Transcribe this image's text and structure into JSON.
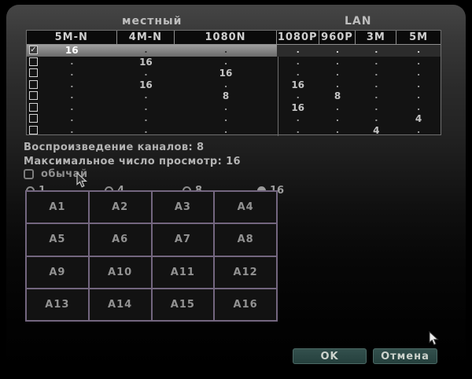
{
  "colors": {
    "grid_border": "#73667f",
    "button_bg": "#33504d",
    "selected_row": "#8a8a8a"
  },
  "dialog": {
    "section_headers": {
      "local": "местный",
      "lan": "LAN"
    },
    "table": {
      "columns": [
        "5M-N",
        "4M-N",
        "1080N",
        "1080P",
        "960P",
        "3M",
        "5M"
      ],
      "rows": [
        {
          "checked": true,
          "selected": true,
          "values": [
            "16",
            ".",
            ".",
            ".",
            ".",
            ".",
            "."
          ]
        },
        {
          "checked": false,
          "selected": false,
          "values": [
            ".",
            "16",
            ".",
            ".",
            ".",
            ".",
            "."
          ]
        },
        {
          "checked": false,
          "selected": false,
          "values": [
            ".",
            ".",
            "16",
            ".",
            ".",
            ".",
            "."
          ]
        },
        {
          "checked": false,
          "selected": false,
          "values": [
            ".",
            "16",
            ".",
            "16",
            ".",
            ".",
            "."
          ]
        },
        {
          "checked": false,
          "selected": false,
          "values": [
            ".",
            ".",
            "8",
            ".",
            "8",
            ".",
            "."
          ]
        },
        {
          "checked": false,
          "selected": false,
          "values": [
            ".",
            ".",
            ".",
            "16",
            ".",
            ".",
            "."
          ]
        },
        {
          "checked": false,
          "selected": false,
          "values": [
            ".",
            ".",
            ".",
            ".",
            ".",
            ".",
            "4"
          ]
        },
        {
          "checked": false,
          "selected": false,
          "values": [
            ".",
            ".",
            ".",
            ".",
            ".",
            "4",
            "."
          ]
        }
      ]
    },
    "info": {
      "playback": "Воспроизведение каналов: 8",
      "max_view": "Максимальное число просмотр: 16"
    },
    "custom_checkbox": {
      "label": "обычай",
      "checked": false
    },
    "radios": [
      {
        "label": "1",
        "selected": false
      },
      {
        "label": "4",
        "selected": false
      },
      {
        "label": "8",
        "selected": false
      },
      {
        "label": "16",
        "selected": true
      }
    ],
    "channels": [
      "A1",
      "A2",
      "A3",
      "A4",
      "A5",
      "A6",
      "A7",
      "A8",
      "A9",
      "A10",
      "A11",
      "A12",
      "A13",
      "A14",
      "A15",
      "A16"
    ],
    "buttons": {
      "ok": "OK",
      "cancel": "Отмена"
    }
  }
}
